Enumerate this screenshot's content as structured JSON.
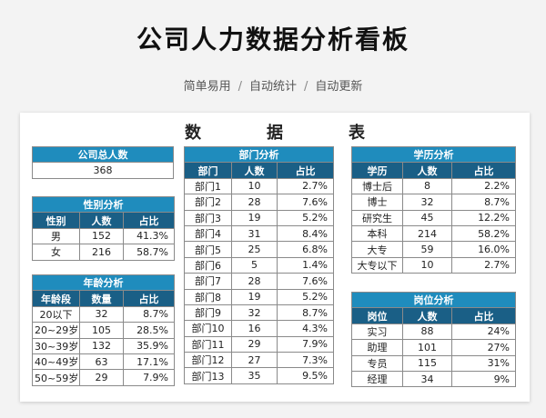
{
  "header": {
    "title": "公司人力数据分析看板",
    "subtitle": [
      "简单易用",
      "自动统计",
      "自动更新"
    ]
  },
  "sheet": {
    "title_chars": [
      "数",
      "据",
      "表"
    ]
  },
  "total": {
    "title": "公司总人数",
    "value": "368"
  },
  "gender": {
    "title": "性别分析",
    "columns": [
      "性别",
      "人数",
      "占比"
    ],
    "rows": [
      [
        "男",
        "152",
        "41.3%"
      ],
      [
        "女",
        "216",
        "58.7%"
      ]
    ]
  },
  "age": {
    "title": "年龄分析",
    "columns": [
      "年龄段",
      "数量",
      "占比"
    ],
    "rows": [
      [
        "20以下",
        "32",
        "8.7%"
      ],
      [
        "20~29岁",
        "105",
        "28.5%"
      ],
      [
        "30~39岁",
        "132",
        "35.9%"
      ],
      [
        "40~49岁",
        "63",
        "17.1%"
      ],
      [
        "50~59岁",
        "29",
        "7.9%"
      ]
    ]
  },
  "dept": {
    "title": "部门分析",
    "columns": [
      "部门",
      "人数",
      "占比"
    ],
    "rows": [
      [
        "部门1",
        "10",
        "2.7%"
      ],
      [
        "部门2",
        "28",
        "7.6%"
      ],
      [
        "部门3",
        "19",
        "5.2%"
      ],
      [
        "部门4",
        "31",
        "8.4%"
      ],
      [
        "部门5",
        "25",
        "6.8%"
      ],
      [
        "部门6",
        "5",
        "1.4%"
      ],
      [
        "部门7",
        "28",
        "7.6%"
      ],
      [
        "部门8",
        "19",
        "5.2%"
      ],
      [
        "部门9",
        "32",
        "8.7%"
      ],
      [
        "部门10",
        "16",
        "4.3%"
      ],
      [
        "部门11",
        "29",
        "7.9%"
      ],
      [
        "部门12",
        "27",
        "7.3%"
      ],
      [
        "部门13",
        "35",
        "9.5%"
      ]
    ]
  },
  "edu": {
    "title": "学历分析",
    "columns": [
      "学历",
      "人数",
      "占比"
    ],
    "rows": [
      [
        "博士后",
        "8",
        "2.2%"
      ],
      [
        "博士",
        "32",
        "8.7%"
      ],
      [
        "研究生",
        "45",
        "12.2%"
      ],
      [
        "本科",
        "214",
        "58.2%"
      ],
      [
        "大专",
        "59",
        "16.0%"
      ],
      [
        "大专以下",
        "10",
        "2.7%"
      ]
    ]
  },
  "post": {
    "title": "岗位分析",
    "columns": [
      "岗位",
      "人数",
      "占比"
    ],
    "rows": [
      [
        "实习",
        "88",
        "24%"
      ],
      [
        "助理",
        "101",
        "27%"
      ],
      [
        "专员",
        "115",
        "31%"
      ],
      [
        "经理",
        "34",
        "9%"
      ]
    ]
  }
}
